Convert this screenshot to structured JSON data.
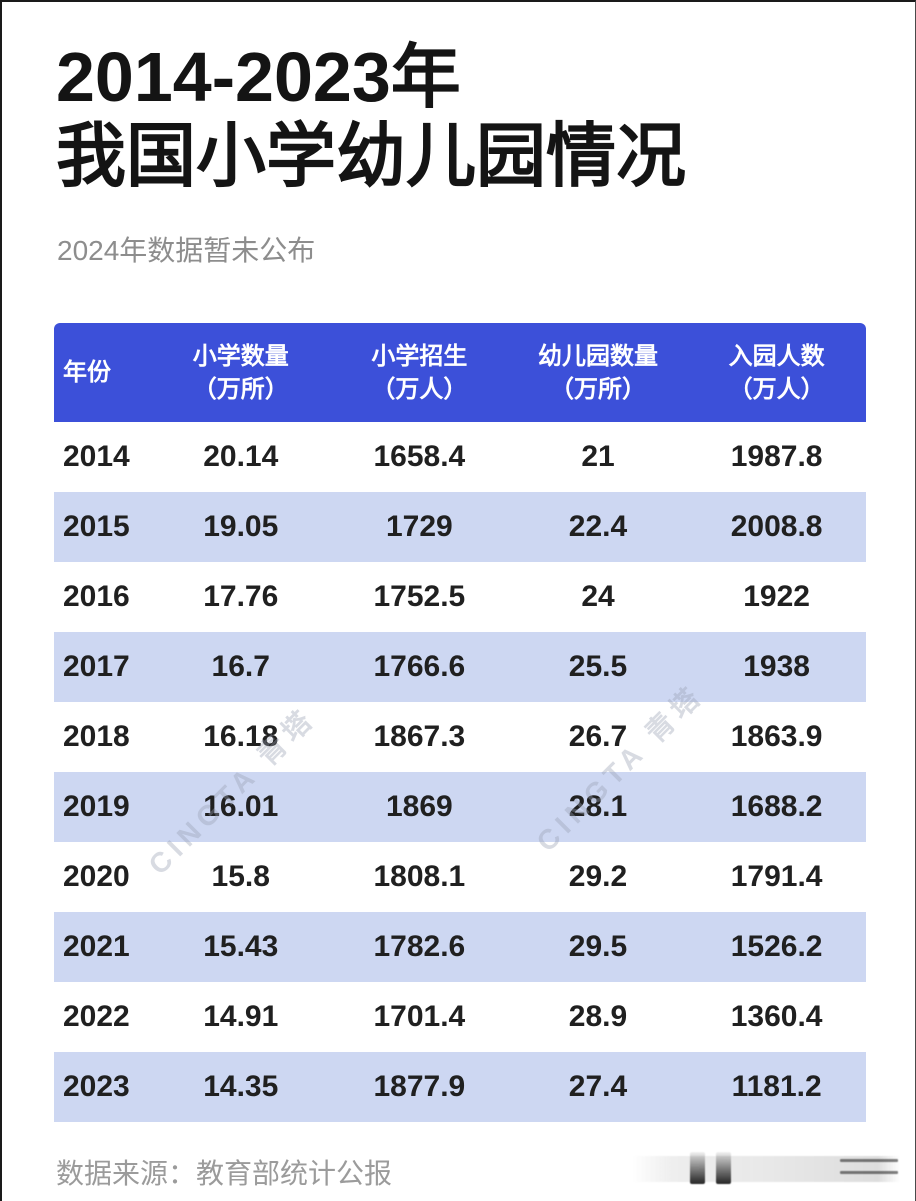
{
  "page": {
    "title_line1": "2014-2023年",
    "title_line2": "我国小学幼儿园情况",
    "subtitle": "2024年数据暂未公布",
    "source": "数据来源：教育部统计公报",
    "watermark": "CINGTA 青塔"
  },
  "table": {
    "columns": [
      {
        "label": "年份",
        "unit": ""
      },
      {
        "label": "小学数量",
        "unit": "（万所）"
      },
      {
        "label": "小学招生",
        "unit": "（万人）"
      },
      {
        "label": "幼儿园数量",
        "unit": "（万所）"
      },
      {
        "label": "入园人数",
        "unit": "（万人）"
      }
    ]
  },
  "chart_data": {
    "type": "table",
    "title": "2014-2023年我国小学幼儿园情况",
    "subtitle": "2024年数据暂未公布",
    "source": "数据来源：教育部统计公报",
    "columns": [
      "年份",
      "小学数量（万所）",
      "小学招生（万人）",
      "幼儿园数量（万所）",
      "入园人数（万人）"
    ],
    "rows": [
      [
        "2014",
        "20.14",
        "1658.4",
        "21",
        "1987.8"
      ],
      [
        "2015",
        "19.05",
        "1729",
        "22.4",
        "2008.8"
      ],
      [
        "2016",
        "17.76",
        "1752.5",
        "24",
        "1922"
      ],
      [
        "2017",
        "16.7",
        "1766.6",
        "25.5",
        "1938"
      ],
      [
        "2018",
        "16.18",
        "1867.3",
        "26.7",
        "1863.9"
      ],
      [
        "2019",
        "16.01",
        "1869",
        "28.1",
        "1688.2"
      ],
      [
        "2020",
        "15.8",
        "1808.1",
        "29.2",
        "1791.4"
      ],
      [
        "2021",
        "15.43",
        "1782.6",
        "29.5",
        "1526.2"
      ],
      [
        "2022",
        "14.91",
        "1701.4",
        "28.9",
        "1360.4"
      ],
      [
        "2023",
        "14.35",
        "1877.9",
        "27.4",
        "1181.2"
      ]
    ]
  },
  "colors": {
    "header_bg": "#3c50d9",
    "row_alt_bg": "#cdd7f2",
    "row_bg": "#ffffff",
    "title_text": "#141414",
    "data_text": "#202020",
    "header_text": "#ffffff",
    "subtitle_text": "#8d8d8d",
    "source_text": "#9b9b9b"
  }
}
